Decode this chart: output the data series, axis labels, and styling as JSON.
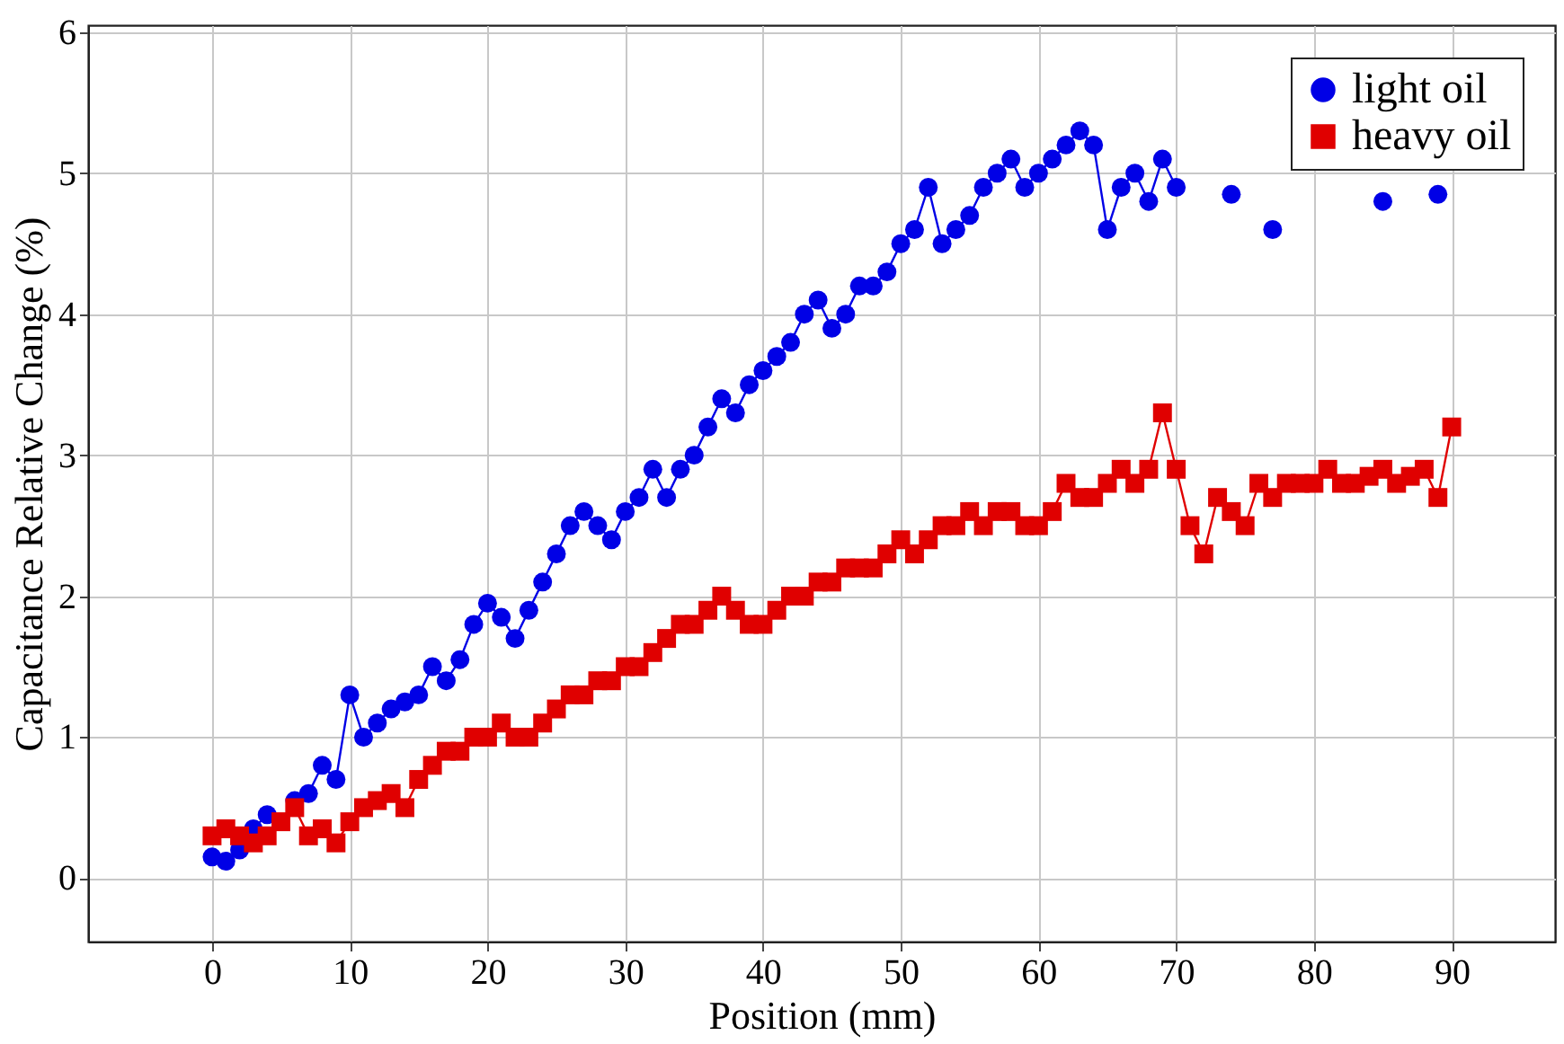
{
  "chart_data": {
    "type": "line",
    "xlabel": "Position (mm)",
    "ylabel": "Capacitance Relative Change (%)",
    "xlim": [
      -9,
      97.5
    ],
    "ylim": [
      -0.45,
      6.05
    ],
    "xticks": [
      0,
      10,
      20,
      30,
      40,
      50,
      60,
      70,
      80,
      90
    ],
    "yticks": [
      0,
      1,
      2,
      3,
      4,
      5,
      6
    ],
    "grid": true,
    "legend": "top right",
    "x": [
      0,
      1,
      2,
      3,
      4,
      5,
      6,
      7,
      8,
      9,
      10,
      11,
      12,
      13,
      14,
      15,
      16,
      17,
      18,
      19,
      20,
      21,
      22,
      23,
      24,
      25,
      26,
      27,
      28,
      29,
      30,
      31,
      32,
      33,
      34,
      35,
      36,
      37,
      38,
      39,
      40,
      41,
      42,
      43,
      44,
      45,
      46,
      47,
      48,
      49,
      50,
      51,
      52,
      53,
      54,
      55,
      56,
      57,
      58,
      59,
      60,
      61,
      62,
      63,
      64,
      65,
      66,
      67,
      68,
      69,
      70,
      71,
      72,
      73,
      74,
      75,
      76,
      77,
      78,
      79,
      80,
      81,
      82,
      83,
      84,
      85,
      86,
      87,
      88,
      89,
      90
    ],
    "series": [
      {
        "name": "light oil",
        "color": "#0000e6",
        "marker": "circle",
        "line_style": "solid",
        "values": [
          0.15,
          0.12,
          0.2,
          0.35,
          0.45,
          null,
          0.55,
          0.6,
          0.8,
          0.7,
          1.3,
          1.0,
          1.1,
          1.2,
          1.25,
          1.3,
          1.5,
          1.4,
          1.55,
          1.8,
          1.95,
          1.85,
          1.7,
          1.9,
          2.1,
          2.3,
          2.5,
          2.6,
          2.5,
          2.4,
          2.6,
          2.7,
          2.9,
          2.7,
          2.9,
          3.0,
          3.2,
          3.4,
          3.3,
          3.5,
          3.6,
          3.7,
          3.8,
          4.0,
          4.1,
          3.9,
          4.0,
          4.2,
          4.2,
          4.3,
          4.5,
          4.6,
          4.9,
          4.5,
          4.6,
          4.7,
          4.9,
          5.0,
          5.1,
          4.9,
          5.0,
          5.1,
          5.2,
          5.3,
          5.2,
          4.6,
          4.9,
          5.0,
          4.8,
          5.1,
          4.9,
          null,
          null,
          null,
          4.85,
          null,
          null,
          4.6,
          null,
          null,
          null,
          null,
          null,
          null,
          null,
          4.8,
          null,
          null,
          null,
          4.85,
          null
        ]
      },
      {
        "name": "heavy oil",
        "color": "#e00000",
        "marker": "square",
        "line_style": "solid",
        "values": [
          0.3,
          0.35,
          0.3,
          0.25,
          0.3,
          0.4,
          0.5,
          0.3,
          0.35,
          0.25,
          0.4,
          0.5,
          0.55,
          0.6,
          0.5,
          0.7,
          0.8,
          0.9,
          0.9,
          1.0,
          1.0,
          1.1,
          1.0,
          1.0,
          1.1,
          1.2,
          1.3,
          1.3,
          1.4,
          1.4,
          1.5,
          1.5,
          1.6,
          1.7,
          1.8,
          1.8,
          1.9,
          2.0,
          1.9,
          1.8,
          1.8,
          1.9,
          2.0,
          2.0,
          2.1,
          2.1,
          2.2,
          2.2,
          2.2,
          2.3,
          2.4,
          2.3,
          2.4,
          2.5,
          2.5,
          2.6,
          2.5,
          2.6,
          2.6,
          2.5,
          2.5,
          2.6,
          2.8,
          2.7,
          2.7,
          2.8,
          2.9,
          2.8,
          2.9,
          3.3,
          2.9,
          2.5,
          2.3,
          2.7,
          2.6,
          2.5,
          2.8,
          2.7,
          2.8,
          2.8,
          2.8,
          2.9,
          2.8,
          2.8,
          2.85,
          2.9,
          2.8,
          2.85,
          2.9,
          2.7,
          3.2
        ]
      }
    ]
  }
}
